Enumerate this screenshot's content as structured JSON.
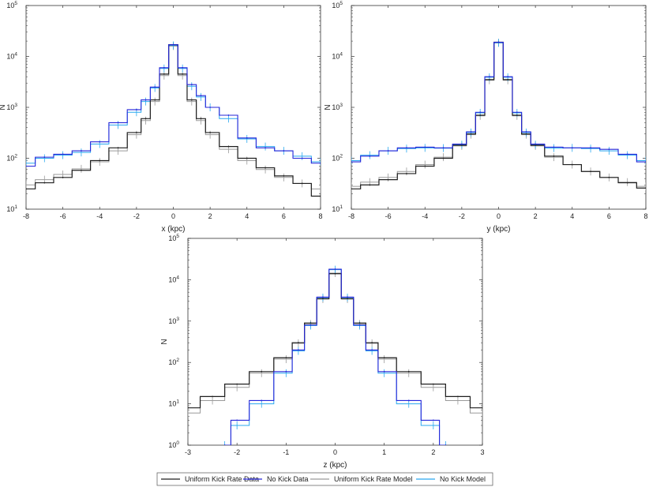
{
  "colors": {
    "uniform_data": "#1f1f1f",
    "nokick_data": "#2626d9",
    "uniform_model": "#9a9a9a",
    "nokick_model": "#29a8ef"
  },
  "legend": [
    {
      "key": "uniform_data",
      "label": "Uniform Kick Rate Data"
    },
    {
      "key": "nokick_data",
      "label": "No Kick Data"
    },
    {
      "key": "uniform_model",
      "label": "Uniform Kick Rate Model"
    },
    {
      "key": "nokick_model",
      "label": "No Kick Model"
    }
  ],
  "chart_data": [
    {
      "type": "line",
      "xlabel": "x (kpc)",
      "ylabel": "N",
      "xlim": [
        -8,
        8
      ],
      "ylim": [
        10,
        100000
      ],
      "yscale": "log",
      "xticks": [
        -8,
        -6,
        -4,
        -2,
        0,
        2,
        4,
        6,
        8
      ],
      "yticks": [
        {
          "base": "10",
          "exp": "1"
        },
        {
          "base": "10",
          "exp": "2"
        },
        {
          "base": "10",
          "exp": "3"
        },
        {
          "base": "10",
          "exp": "4"
        },
        {
          "base": "10",
          "exp": "5"
        }
      ],
      "grid": false,
      "series": [
        {
          "name": "Uniform Kick Rate Data",
          "x": [
            -8,
            -7,
            -6,
            -5,
            -4,
            -3,
            -2,
            -1.5,
            -1,
            -0.5,
            0,
            0.5,
            1,
            1.5,
            2,
            3,
            4,
            5,
            6,
            7,
            8
          ],
          "y": [
            25,
            33,
            42,
            58,
            90,
            160,
            320,
            600,
            1400,
            4500,
            17000,
            4500,
            1400,
            600,
            320,
            170,
            100,
            65,
            45,
            32,
            18
          ]
        },
        {
          "name": "No Kick Data",
          "x": [
            -8,
            -7,
            -6,
            -5,
            -4,
            -3,
            -2,
            -1.5,
            -1,
            -0.5,
            0,
            0.5,
            1,
            1.5,
            2,
            3,
            4,
            5,
            6,
            7,
            8
          ],
          "y": [
            70,
            105,
            120,
            140,
            210,
            500,
            900,
            1400,
            2500,
            6000,
            17000,
            6000,
            2800,
            1700,
            1000,
            700,
            250,
            160,
            140,
            100,
            80
          ]
        },
        {
          "name": "Uniform Kick Rate Model",
          "x": [
            -8,
            -7,
            -6,
            -5,
            -4,
            -3,
            -2,
            -1.5,
            -1,
            -0.5,
            0,
            0.5,
            1,
            1.5,
            2,
            3,
            4,
            5,
            6,
            7,
            8
          ],
          "y": [
            30,
            38,
            48,
            62,
            85,
            140,
            290,
            550,
            1300,
            4200,
            16000,
            4200,
            1300,
            550,
            290,
            150,
            90,
            60,
            42,
            32,
            25
          ]
        },
        {
          "name": "No Kick Model",
          "x": [
            -8,
            -7,
            -6,
            -5,
            -4,
            -3,
            -2,
            -1.5,
            -1,
            -0.5,
            0,
            0.5,
            1,
            1.5,
            2,
            3,
            4,
            5,
            6,
            7,
            8
          ],
          "y": [
            80,
            100,
            115,
            130,
            190,
            450,
            800,
            1300,
            2400,
            5800,
            16500,
            5800,
            2600,
            1600,
            1000,
            600,
            240,
            170,
            140,
            110,
            85
          ]
        }
      ]
    },
    {
      "type": "line",
      "xlabel": "y (kpc)",
      "ylabel": "N",
      "xlim": [
        -8,
        8
      ],
      "ylim": [
        10,
        100000
      ],
      "yscale": "log",
      "xticks": [
        -8,
        -6,
        -4,
        -2,
        0,
        2,
        4,
        6,
        8
      ],
      "yticks": [
        {
          "base": "10",
          "exp": "1"
        },
        {
          "base": "10",
          "exp": "2"
        },
        {
          "base": "10",
          "exp": "3"
        },
        {
          "base": "10",
          "exp": "4"
        },
        {
          "base": "10",
          "exp": "5"
        }
      ],
      "grid": false,
      "series": [
        {
          "name": "Uniform Kick Rate Data",
          "x": [
            -8,
            -7,
            -6,
            -5,
            -4,
            -3,
            -2,
            -1.5,
            -1,
            -0.5,
            0,
            0.5,
            1,
            1.5,
            2,
            3,
            4,
            5,
            6,
            7,
            8
          ],
          "y": [
            25,
            30,
            38,
            50,
            70,
            100,
            180,
            300,
            700,
            3500,
            19000,
            3500,
            700,
            300,
            180,
            110,
            75,
            55,
            42,
            33,
            26
          ]
        },
        {
          "name": "No Kick Data",
          "x": [
            -8,
            -7,
            -6,
            -5,
            -4,
            -3,
            -2,
            -1.5,
            -1,
            -0.5,
            0,
            0.5,
            1,
            1.5,
            2,
            3,
            4,
            5,
            6,
            7,
            8
          ],
          "y": [
            85,
            110,
            140,
            160,
            165,
            160,
            190,
            330,
            800,
            4000,
            19000,
            4000,
            800,
            330,
            190,
            165,
            160,
            160,
            150,
            120,
            85
          ]
        },
        {
          "name": "Uniform Kick Rate Model",
          "x": [
            -8,
            -7,
            -6,
            -5,
            -4,
            -3,
            -2,
            -1.5,
            -1,
            -0.5,
            0,
            0.5,
            1,
            1.5,
            2,
            3,
            4,
            5,
            6,
            7,
            8
          ],
          "y": [
            28,
            34,
            42,
            55,
            75,
            105,
            175,
            290,
            680,
            3400,
            18500,
            3400,
            680,
            290,
            175,
            105,
            75,
            55,
            42,
            34,
            28
          ]
        },
        {
          "name": "No Kick Model",
          "x": [
            -8,
            -7,
            -6,
            -5,
            -4,
            -3,
            -2,
            -1.5,
            -1,
            -0.5,
            0,
            0.5,
            1,
            1.5,
            2,
            3,
            4,
            5,
            6,
            7,
            8
          ],
          "y": [
            90,
            115,
            140,
            155,
            160,
            158,
            185,
            320,
            780,
            3900,
            18500,
            3900,
            780,
            320,
            185,
            158,
            160,
            155,
            140,
            115,
            90
          ]
        }
      ]
    },
    {
      "type": "line",
      "xlabel": "z (kpc)",
      "ylabel": "N",
      "xlim": [
        -3,
        3
      ],
      "ylim": [
        1,
        100000
      ],
      "yscale": "log",
      "xticks": [
        -3,
        -2,
        -1,
        0,
        1,
        2,
        3
      ],
      "yticks": [
        {
          "base": "10",
          "exp": "0"
        },
        {
          "base": "10",
          "exp": "1"
        },
        {
          "base": "10",
          "exp": "2"
        },
        {
          "base": "10",
          "exp": "3"
        },
        {
          "base": "10",
          "exp": "4"
        },
        {
          "base": "10",
          "exp": "5"
        }
      ],
      "grid": false,
      "series": [
        {
          "name": "Uniform Kick Rate Data",
          "x": [
            -3,
            -2.5,
            -2,
            -1.5,
            -1,
            -0.75,
            -0.5,
            -0.25,
            0,
            0.25,
            0.5,
            0.75,
            1,
            1.5,
            2,
            2.5,
            3
          ],
          "y": [
            8,
            15,
            30,
            60,
            130,
            300,
            900,
            3500,
            14000,
            3500,
            900,
            300,
            130,
            60,
            30,
            15,
            8
          ]
        },
        {
          "name": "No Kick Data",
          "x": [
            -2.25,
            -2,
            -1.5,
            -1,
            -0.75,
            -0.5,
            -0.25,
            0,
            0.25,
            0.5,
            0.75,
            1,
            1.5,
            2,
            2.25
          ],
          "y": [
            1,
            4,
            12,
            60,
            200,
            800,
            3800,
            18000,
            3800,
            800,
            200,
            60,
            12,
            4,
            1
          ]
        },
        {
          "name": "Uniform Kick Rate Model",
          "x": [
            -3,
            -2.5,
            -2,
            -1.5,
            -1,
            -0.75,
            -0.5,
            -0.25,
            0,
            0.25,
            0.5,
            0.75,
            1,
            1.5,
            2,
            2.5,
            3
          ],
          "y": [
            6,
            12,
            25,
            55,
            120,
            290,
            850,
            3400,
            14500,
            3400,
            850,
            290,
            120,
            55,
            25,
            12,
            6
          ]
        },
        {
          "name": "No Kick Model",
          "x": [
            -2.25,
            -2,
            -1.5,
            -1,
            -0.75,
            -0.5,
            -0.25,
            0,
            0.25,
            0.5,
            0.75,
            1,
            1.5,
            2,
            2.25
          ],
          "y": [
            1,
            3,
            10,
            55,
            190,
            780,
            3700,
            17500,
            3700,
            780,
            190,
            55,
            10,
            3,
            1
          ]
        }
      ]
    }
  ]
}
